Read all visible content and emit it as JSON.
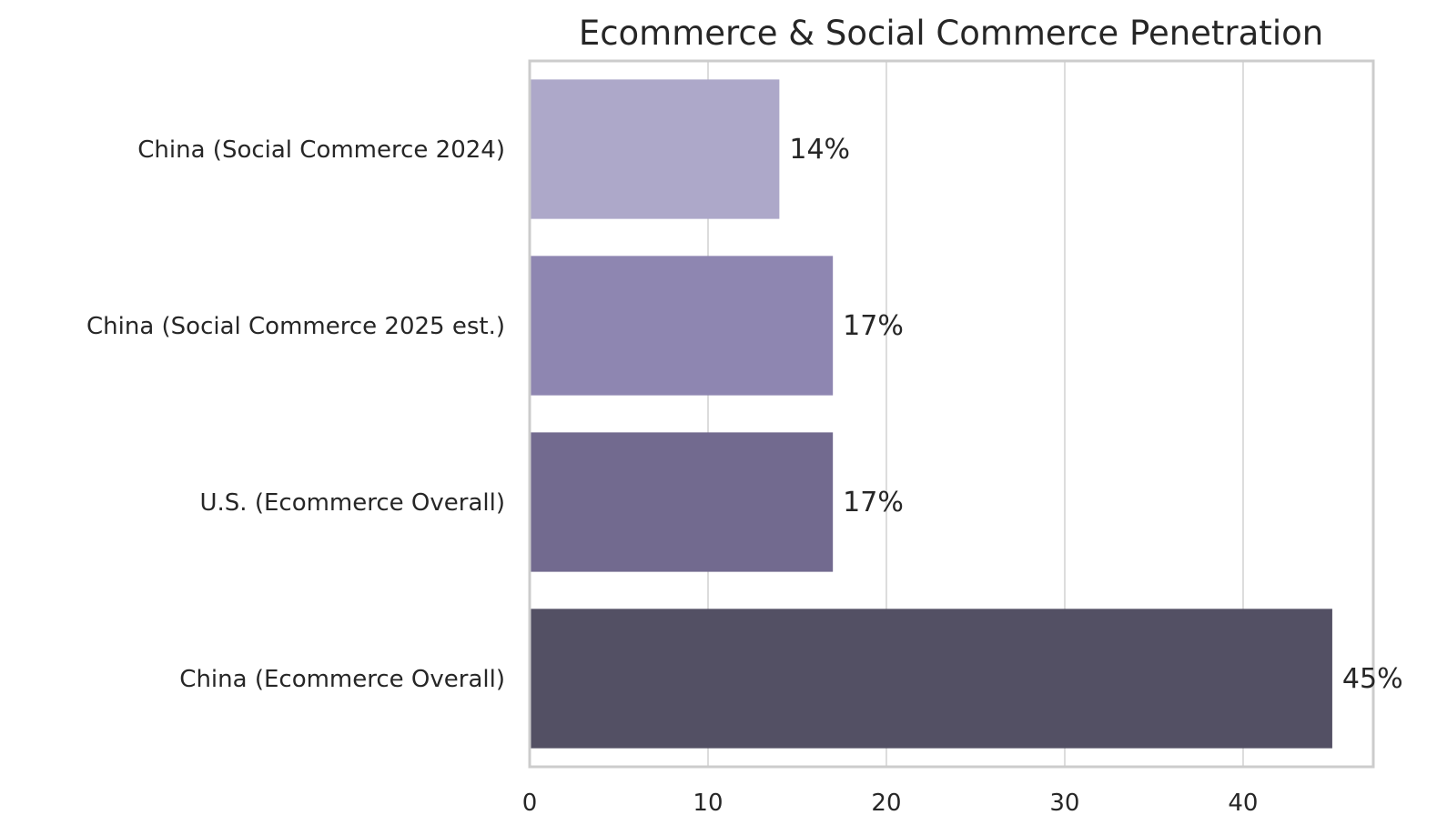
{
  "chart_data": {
    "type": "bar",
    "orientation": "horizontal",
    "title": "Ecommerce & Social Commerce Penetration",
    "xlabel": "",
    "ylabel": "",
    "categories": [
      "China (Social Commerce 2024)",
      "China (Social Commerce 2025 est.)",
      "U.S. (Ecommerce Overall)",
      "China (Ecommerce Overall)"
    ],
    "values": [
      14,
      17,
      17,
      45
    ],
    "value_labels": [
      "14%",
      "17%",
      "17%",
      "45%"
    ],
    "colors": [
      "#ada8c9",
      "#8e86b1",
      "#726a8f",
      "#535064"
    ],
    "xlim": [
      0,
      47.3
    ],
    "xticks": [
      0,
      10,
      20,
      30,
      40
    ],
    "grid": true
  }
}
